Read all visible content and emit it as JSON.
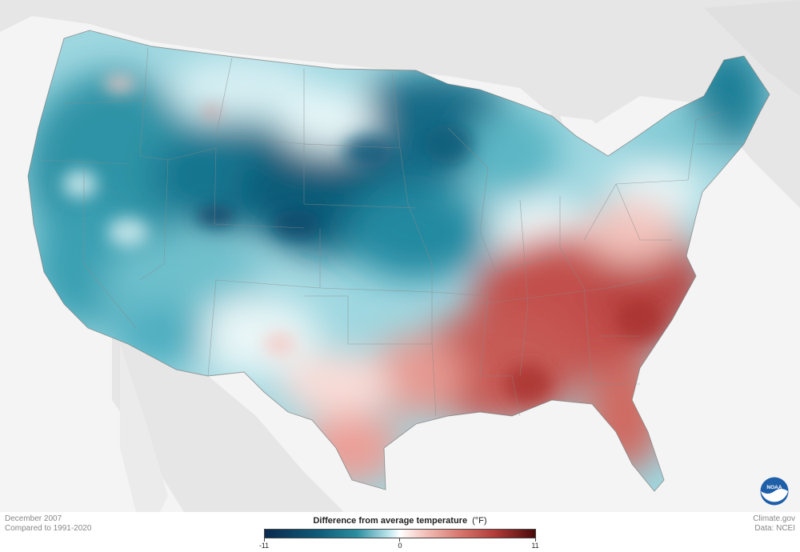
{
  "map": {
    "colors": {
      "background": "#f4f4f4",
      "land_outside": "#e4e4e4",
      "cold_strong": "#0f5c78",
      "cold_mid": "#2a8ea0",
      "cold_light": "#bfe7ee",
      "neutral": "#ffffff",
      "warm_light": "#f6c8c2",
      "warm_mid": "#d8766e",
      "warm_strong": "#b23b38"
    }
  },
  "footer": {
    "date": "December 2007",
    "baseline": "Compared to 1991-2020",
    "credit_site": "Climate.gov",
    "credit_data": "Data: NCEI"
  },
  "legend": {
    "title": "Difference from average temperature",
    "unit": "(°F)",
    "min_label": "-11",
    "mid_label": "0",
    "max_label": "11"
  },
  "logo": {
    "text": "NOAA"
  }
}
